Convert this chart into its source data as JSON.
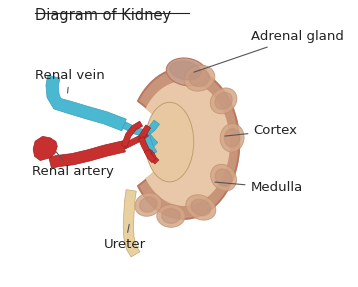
{
  "title": "Diagram of Kidney",
  "background_color": "#ffffff",
  "kidney_outer_color": "#c8947a",
  "kidney_inner_color": "#e8c8a8",
  "kidney_dark_outer": "#b87860",
  "adrenal_color": "#c8a090",
  "renal_vein_color": "#4ab8d0",
  "renal_artery_color": "#c83030",
  "ureter_color": "#e8d0a0",
  "pelvis_color": "#e8c8a0",
  "annotation_color": "#222222",
  "line_color": "#555555",
  "labels": {
    "title": "Diagram of Kidney",
    "adrenal_gland": "Adrenal gland",
    "renal_vein": "Renal vein",
    "cortex": "Cortex",
    "renal_artery": "Renal artery",
    "medulla": "Medulla",
    "ureter": "Ureter"
  },
  "label_fontsize": 9.5
}
